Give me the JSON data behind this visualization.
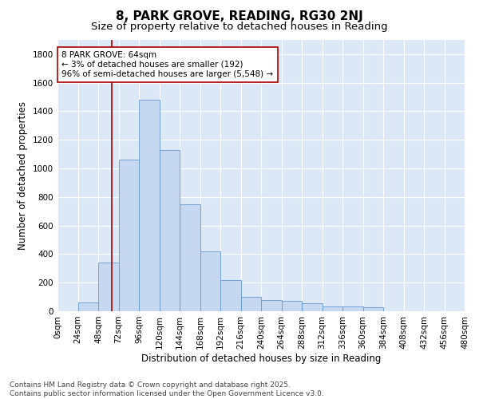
{
  "title": "8, PARK GROVE, READING, RG30 2NJ",
  "subtitle": "Size of property relative to detached houses in Reading",
  "xlabel": "Distribution of detached houses by size in Reading",
  "ylabel": "Number of detached properties",
  "bar_color": "#c5d8f0",
  "bar_edge_color": "#6699cc",
  "background_color": "#dce8f5",
  "annotation_text": "8 PARK GROVE: 64sqm\n← 3% of detached houses are smaller (192)\n96% of semi-detached houses are larger (5,548) →",
  "vline_x": 64,
  "vline_color": "#aa0000",
  "annotation_box_color": "#aa0000",
  "bin_edges": [
    0,
    24,
    48,
    72,
    96,
    120,
    144,
    168,
    192,
    216,
    240,
    264,
    288,
    312,
    336,
    360,
    384,
    408,
    432,
    456,
    480
  ],
  "counts": [
    0,
    60,
    340,
    1060,
    1480,
    1130,
    750,
    420,
    220,
    100,
    80,
    75,
    55,
    35,
    35,
    30,
    0,
    0,
    0,
    0
  ],
  "ylim": [
    0,
    1900
  ],
  "yticks": [
    0,
    200,
    400,
    600,
    800,
    1000,
    1200,
    1400,
    1600,
    1800
  ],
  "tick_labels": [
    "0sqm",
    "24sqm",
    "48sqm",
    "72sqm",
    "96sqm",
    "120sqm",
    "144sqm",
    "168sqm",
    "192sqm",
    "216sqm",
    "240sqm",
    "264sqm",
    "288sqm",
    "312sqm",
    "336sqm",
    "360sqm",
    "384sqm",
    "408sqm",
    "432sqm",
    "456sqm",
    "480sqm"
  ],
  "footer": "Contains HM Land Registry data © Crown copyright and database right 2025.\nContains public sector information licensed under the Open Government Licence v3.0.",
  "title_fontsize": 11,
  "subtitle_fontsize": 9.5,
  "label_fontsize": 8.5,
  "tick_fontsize": 7.5,
  "footer_fontsize": 6.5,
  "annot_fontsize": 7.5
}
